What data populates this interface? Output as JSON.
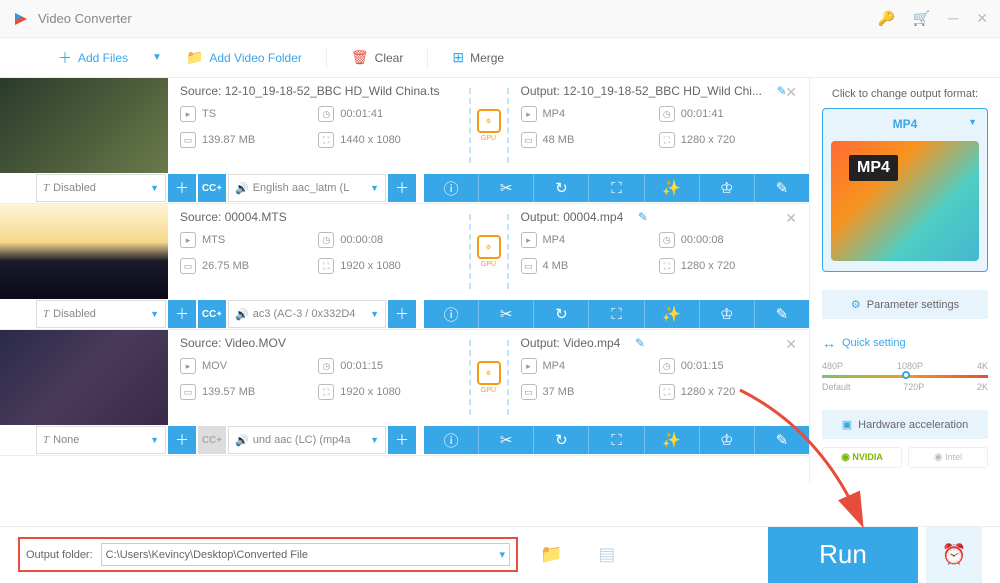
{
  "app": {
    "title": "Video Converter"
  },
  "toolbar": {
    "addFiles": "Add Files",
    "addFolder": "Add Video Folder",
    "clear": "Clear",
    "merge": "Merge"
  },
  "items": [
    {
      "src": {
        "label": "Source: 12-10_19-18-52_BBC HD_Wild China.ts",
        "fmt": "TS",
        "dur": "00:01:41",
        "size": "139.87 MB",
        "res": "1440 x 1080"
      },
      "out": {
        "label": "Output: 12-10_19-18-52_BBC HD_Wild Chi...",
        "fmt": "MP4",
        "dur": "00:01:41",
        "size": "48 MB",
        "res": "1280 x 720"
      },
      "sub": "Disabled",
      "aud": "English aac_latm (L",
      "cc": true,
      "thumb": "linear-gradient(135deg,#2a3a2a,#4a5a3a,#6a7a4a)"
    },
    {
      "src": {
        "label": "Source: 00004.MTS",
        "fmt": "MTS",
        "dur": "00:00:08",
        "size": "26.75 MB",
        "res": "1920 x 1080"
      },
      "out": {
        "label": "Output: 00004.mp4",
        "fmt": "MP4",
        "dur": "00:00:08",
        "size": "4 MB",
        "res": "1280 x 720"
      },
      "sub": "Disabled",
      "aud": "ac3 (AC-3 / 0x332D4",
      "cc": true,
      "thumb": "linear-gradient(180deg,#fff4d6 0%,#f7d98c 40%,#1a1a2a 60%,#0a0a1a 100%)"
    },
    {
      "src": {
        "label": "Source: Video.MOV",
        "fmt": "MOV",
        "dur": "00:01:15",
        "size": "139.57 MB",
        "res": "1920 x 1080"
      },
      "out": {
        "label": "Output: Video.mp4",
        "fmt": "MP4",
        "dur": "00:01:15",
        "size": "37 MB",
        "res": "1280 x 720"
      },
      "sub": "None",
      "aud": "und aac (LC) (mp4a",
      "cc": false,
      "thumb": "linear-gradient(135deg,#2a2a4a,#4a3a5a,#3a2a4a)"
    }
  ],
  "side": {
    "title": "Click to change output format:",
    "fmt": "MP4",
    "param": "Parameter settings",
    "qs": "Quick setting",
    "sliderTop": [
      "480P",
      "1080P",
      "4K"
    ],
    "sliderBot": [
      "Default",
      "720P",
      "2K"
    ],
    "hw": "Hardware acceleration",
    "nvidia": "NVIDIA",
    "intel": "Intel"
  },
  "bottom": {
    "label": "Output folder:",
    "path": "C:\\Users\\Kevincy\\Desktop\\Converted File",
    "run": "Run"
  },
  "gpu": "GPU"
}
